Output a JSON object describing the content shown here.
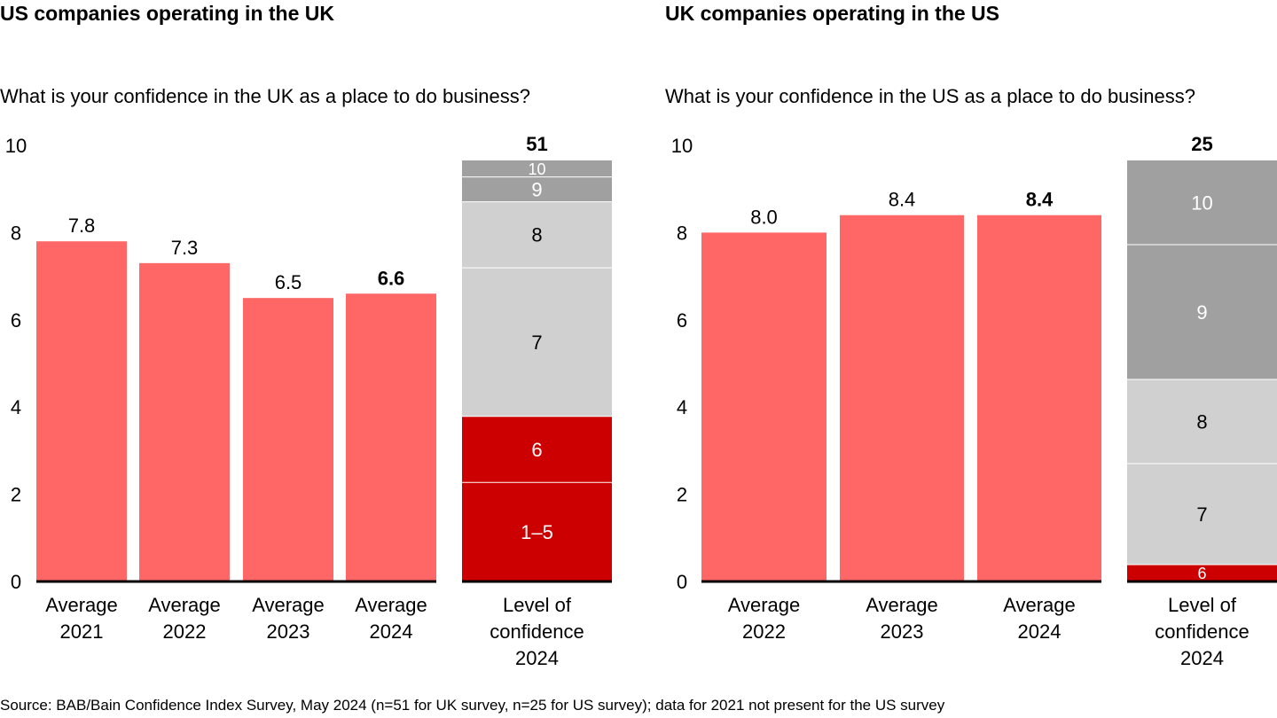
{
  "source_note": "Source: BAB/Bain Confidence Index Survey, May 2024 (n=51 for UK survey, n=25 for US survey); data for 2021 not present for the US survey",
  "colors": {
    "average_bar": "#FF6666",
    "low_confidence": "#CC0000",
    "mid_confidence": "#D0D0D0",
    "high_confidence": "#A0A0A0",
    "axis": "#000000"
  },
  "chart_data": [
    {
      "type": "bar",
      "title": "US companies operating in the UK",
      "subtitle": "What is your confidence in the UK as a place to do business?",
      "ylim": [
        0,
        10
      ],
      "yticks": [
        0,
        2,
        4,
        6,
        8,
        10
      ],
      "grid": false,
      "categories": [
        [
          "Average",
          "2021"
        ],
        [
          "Average",
          "2022"
        ],
        [
          "Average",
          "2023"
        ],
        [
          "Average",
          "2024"
        ]
      ],
      "values": [
        7.8,
        7.3,
        6.5,
        6.6
      ],
      "value_labels": [
        "7.8",
        "7.3",
        "6.5",
        "6.6"
      ],
      "bold_index": 3,
      "stack": {
        "label": [
          "Level of",
          "confidence",
          "2024"
        ],
        "total": 51,
        "total_label": "51",
        "segments": [
          {
            "name": "1–5",
            "count": 12,
            "color_key": "low_confidence",
            "text_color": "#FFFFFF"
          },
          {
            "name": "6",
            "count": 8,
            "color_key": "low_confidence",
            "text_color": "#FFFFFF"
          },
          {
            "name": "7",
            "count": 18,
            "color_key": "mid_confidence",
            "text_color": "#000000"
          },
          {
            "name": "8",
            "count": 8,
            "color_key": "mid_confidence",
            "text_color": "#000000"
          },
          {
            "name": "9",
            "count": 3,
            "color_key": "high_confidence",
            "text_color": "#FFFFFF"
          },
          {
            "name": "10",
            "count": 2,
            "color_key": "high_confidence",
            "text_color": "#FFFFFF"
          }
        ]
      }
    },
    {
      "type": "bar",
      "title": "UK companies operating in the US",
      "subtitle": "What is your confidence in the US as a place to do business?",
      "ylim": [
        0,
        10
      ],
      "yticks": [
        0,
        2,
        4,
        6,
        8,
        10
      ],
      "grid": false,
      "categories": [
        [
          "Average",
          "2022"
        ],
        [
          "Average",
          "2023"
        ],
        [
          "Average",
          "2024"
        ]
      ],
      "values": [
        8.0,
        8.4,
        8.4
      ],
      "value_labels": [
        "8.0",
        "8.4",
        "8.4"
      ],
      "bold_index": 2,
      "stack": {
        "label": [
          "Level of",
          "confidence",
          "2024"
        ],
        "total": 25,
        "total_label": "25",
        "segments": [
          {
            "name": "6",
            "count": 1,
            "color_key": "low_confidence",
            "text_color": "#FFFFFF"
          },
          {
            "name": "7",
            "count": 6,
            "color_key": "mid_confidence",
            "text_color": "#000000"
          },
          {
            "name": "8",
            "count": 5,
            "color_key": "mid_confidence",
            "text_color": "#000000"
          },
          {
            "name": "9",
            "count": 8,
            "color_key": "high_confidence",
            "text_color": "#FFFFFF"
          },
          {
            "name": "10",
            "count": 5,
            "color_key": "high_confidence",
            "text_color": "#FFFFFF"
          }
        ]
      }
    }
  ]
}
